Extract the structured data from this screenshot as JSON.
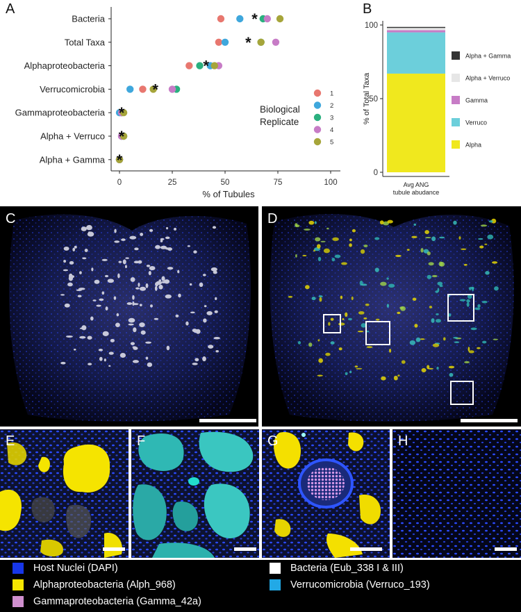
{
  "panels": {
    "a": "A",
    "b": "B",
    "c": "C",
    "d": "D",
    "e": "E",
    "f": "F",
    "g": "G",
    "h": "H"
  },
  "chart_data": [
    {
      "type": "scatter",
      "panel": "A",
      "xlabel": "% of Tubules",
      "xlim": [
        0,
        100
      ],
      "xticks": [
        0,
        25,
        50,
        75,
        100
      ],
      "categories": [
        "Bacteria",
        "Total Taxa",
        "Alphaproteobacteria",
        "Verrucomicrobia",
        "Gammaproteobacteria",
        "Alpha + Verruco",
        "Alpha + Gamma"
      ],
      "legend_title": [
        "Biological",
        "Replicate"
      ],
      "series": [
        {
          "name": "1",
          "color": "#e8776f",
          "values": [
            48,
            47,
            33,
            11,
            1,
            1,
            0
          ]
        },
        {
          "name": "2",
          "color": "#3fa7dc",
          "values": [
            57,
            50,
            43,
            5,
            0,
            1,
            0
          ]
        },
        {
          "name": "3",
          "color": "#2bb07f",
          "values": [
            68,
            67,
            38,
            27,
            1,
            2,
            0
          ]
        },
        {
          "name": "4",
          "color": "#c77cc6",
          "values": [
            70,
            74,
            47,
            25,
            1,
            1,
            0
          ]
        },
        {
          "name": "5",
          "color": "#a6a53a",
          "values": [
            76,
            67,
            45,
            16,
            2,
            2,
            0
          ]
        }
      ],
      "means": [
        64,
        61,
        41,
        17,
        1,
        1,
        0
      ]
    },
    {
      "type": "bar",
      "panel": "B",
      "stacked": true,
      "categories": [
        "Avg ANG tubule abudance"
      ],
      "ylabel": "% of Total Taxa",
      "ylim": [
        0,
        100
      ],
      "yticks": [
        0,
        50,
        100
      ],
      "series": [
        {
          "name": "Alpha",
          "color": "#f0e81e",
          "values": [
            67
          ]
        },
        {
          "name": "Verruco",
          "color": "#6ccfdb",
          "values": [
            28
          ]
        },
        {
          "name": "Gamma",
          "color": "#c77cc6",
          "values": [
            1.5
          ]
        },
        {
          "name": "Alpha + Verruco",
          "color": "#e6e6e6",
          "values": [
            1.5
          ]
        },
        {
          "name": "Alpha + Gamma",
          "color": "#333333",
          "values": [
            0.7
          ]
        }
      ],
      "legend_order": [
        "Alpha + Gamma",
        "Alpha + Verruco",
        "Gamma",
        "Verruco",
        "Alpha"
      ]
    }
  ],
  "micro_legend": [
    {
      "label": "Host Nuclei (DAPI)",
      "color": "#1736e8"
    },
    {
      "label": "Alphaproteobacteria (Alph_968)",
      "color": "#f5e600"
    },
    {
      "label": "Gammaproteobacteria (Gamma_42a)",
      "color": "#cf8fce"
    },
    {
      "label": "Bacteria (Eub_338 I & III)",
      "color": "#ffffff"
    },
    {
      "label": "Verrucomicrobia (Verruco_193)",
      "color": "#22a9e6"
    }
  ]
}
